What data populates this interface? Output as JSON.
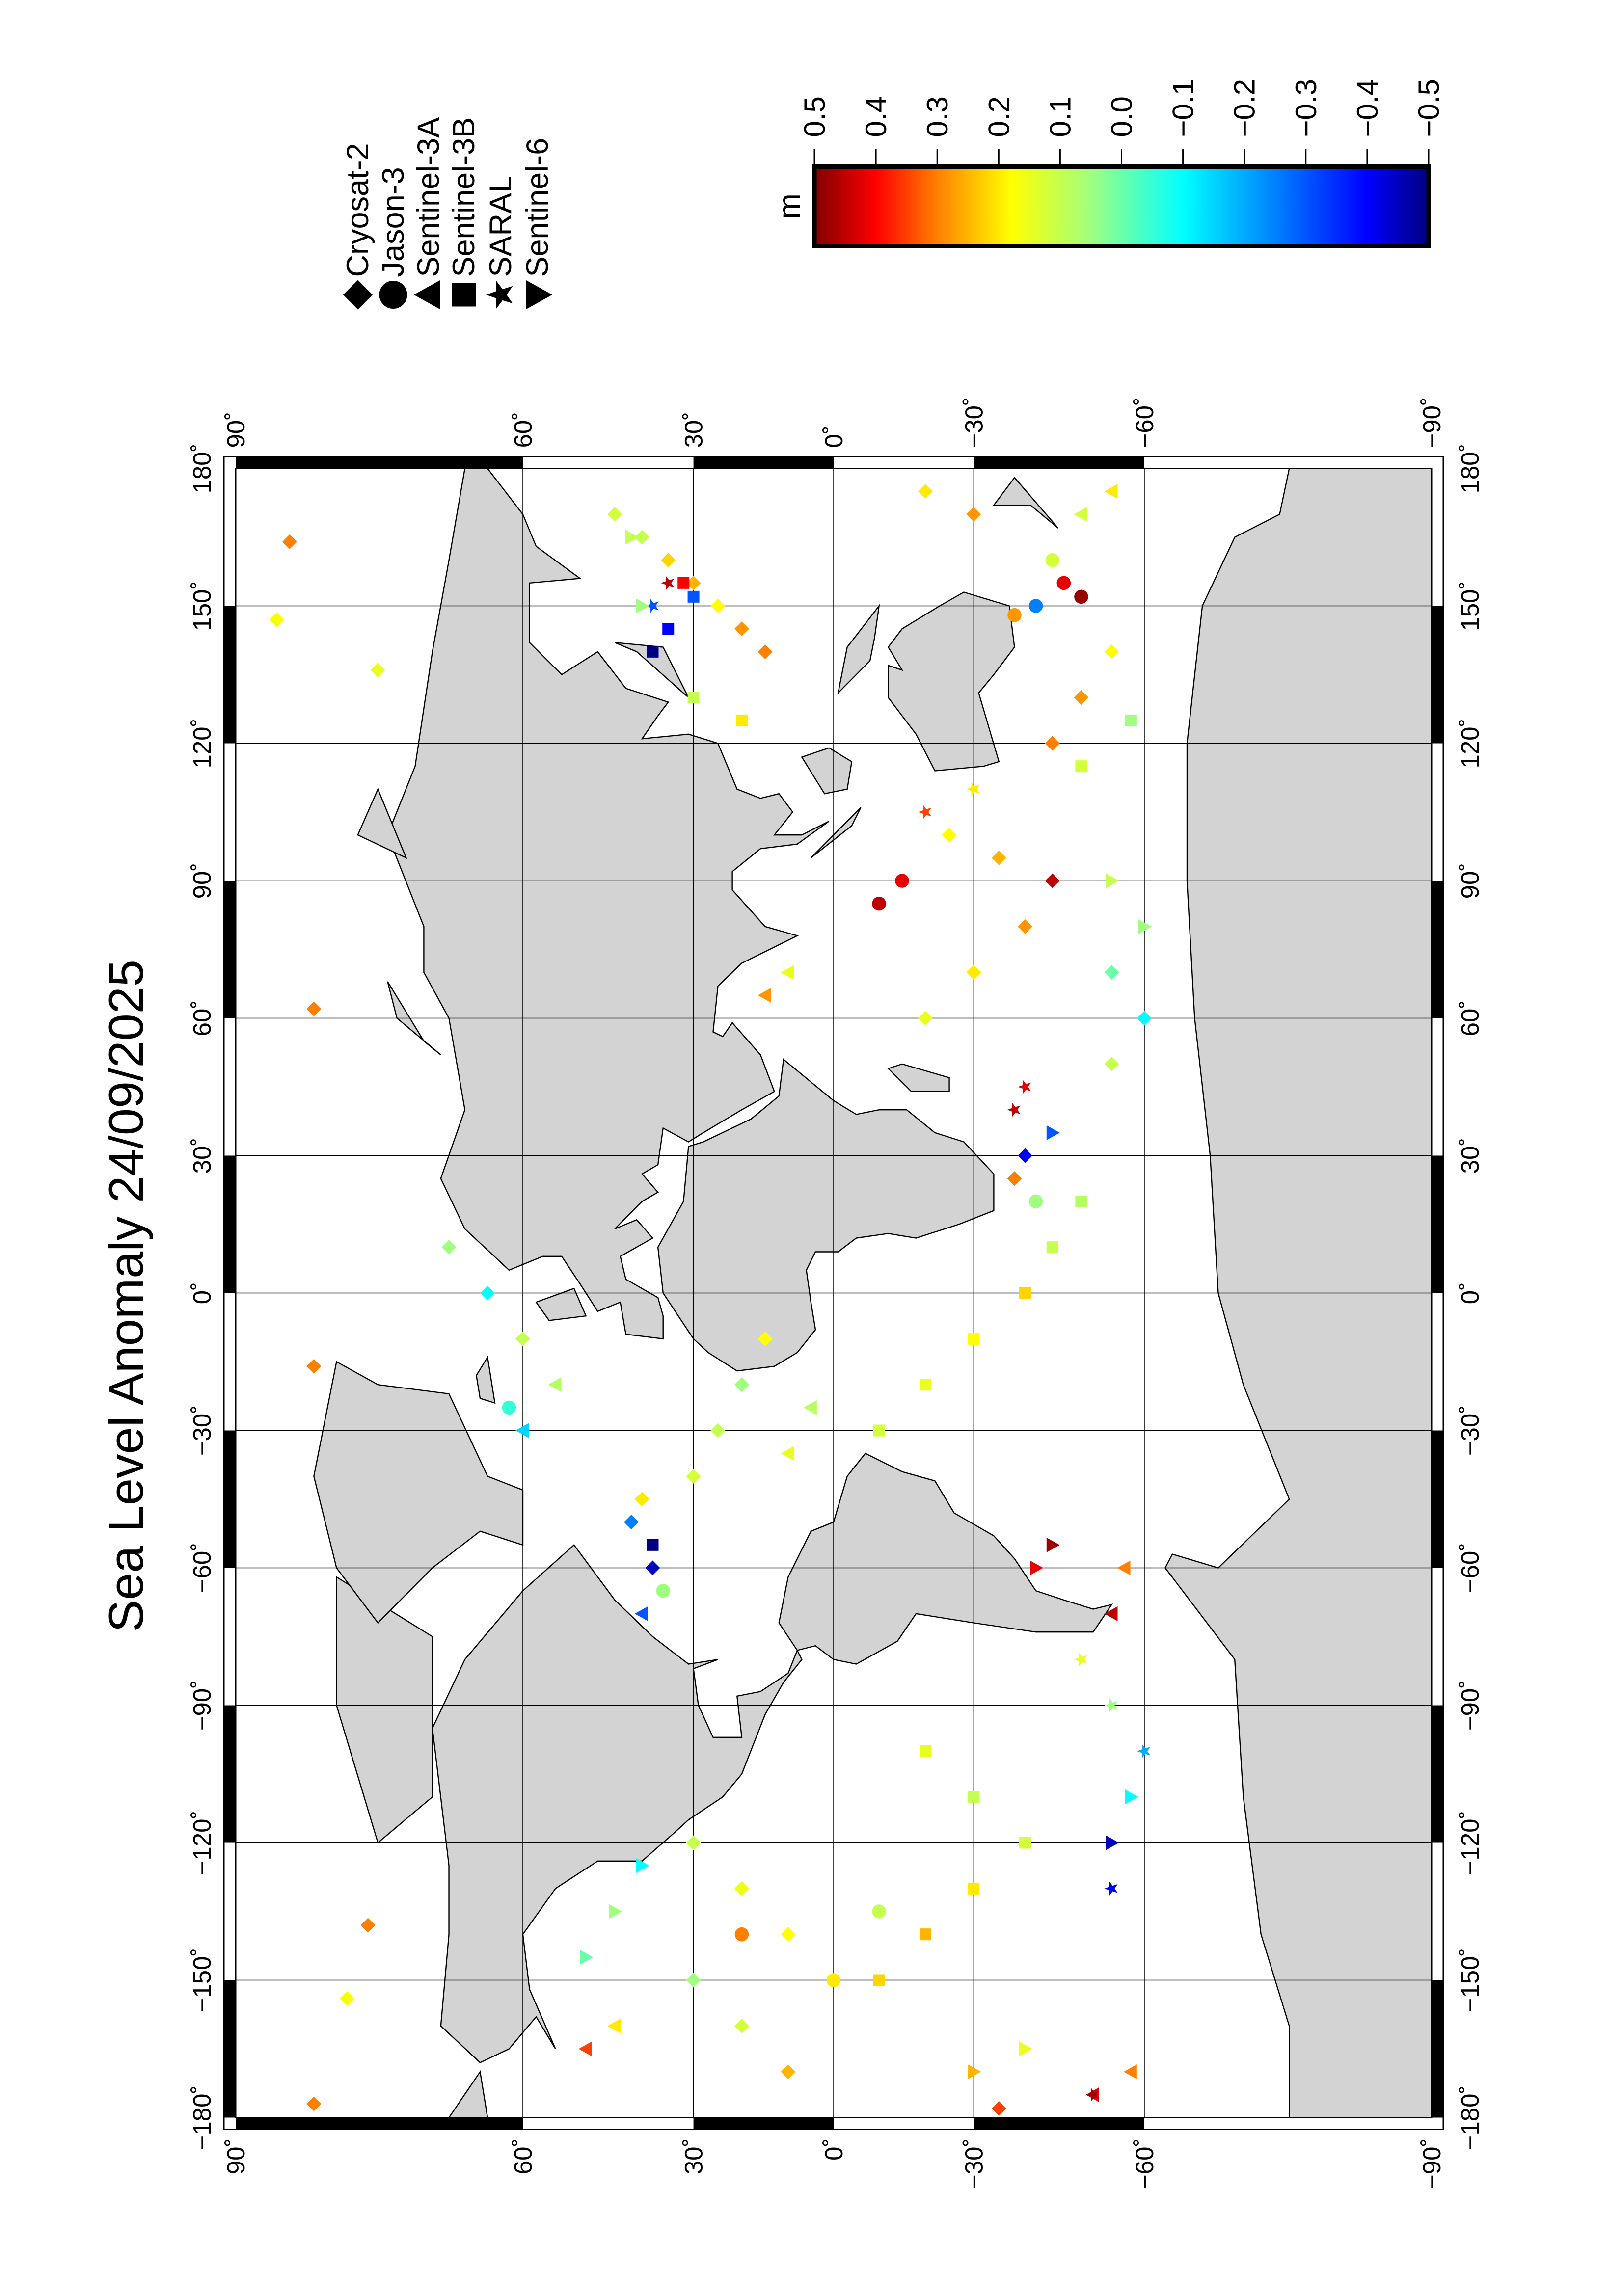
{
  "chart_data": {
    "type": "scatter",
    "title": "Sea Level Anomaly 24/09/2025",
    "projection": "Miller cylindrical",
    "xlim": [
      -180,
      180
    ],
    "ylim": [
      -90,
      90
    ],
    "grid": true,
    "lon_ticks": [
      -180,
      -150,
      -120,
      -90,
      -60,
      -30,
      0,
      30,
      60,
      90,
      120,
      150,
      180
    ],
    "lon_tick_labels": [
      "−180˚",
      "−150˚",
      "−120˚",
      "−90˚",
      "−60˚",
      "−30˚",
      "0˚",
      "30˚",
      "60˚",
      "90˚",
      "120˚",
      "150˚",
      "180˚"
    ],
    "lat_ticks": [
      90,
      60,
      30,
      0,
      -30,
      -60,
      -90
    ],
    "lat_tick_labels": [
      "90˚",
      "60˚",
      "30˚",
      "0˚",
      "−30˚",
      "−60˚",
      "−90˚"
    ],
    "land_color": "#d3d3d3",
    "legend": {
      "placement": "top-right",
      "entries": [
        {
          "name": "Cryosat-2",
          "symbol": "diamond"
        },
        {
          "name": "Jason-3",
          "symbol": "circle"
        },
        {
          "name": "Sentinel-3A",
          "symbol": "triangle"
        },
        {
          "name": "Sentinel-3B",
          "symbol": "square"
        },
        {
          "name": "SARAL",
          "symbol": "star"
        },
        {
          "name": "Sentinel-6",
          "symbol": "inverted-triangle"
        }
      ]
    },
    "colorbar": {
      "unit": "m",
      "range": [
        -0.5,
        0.5
      ],
      "ticks": [
        0.5,
        0.4,
        0.3,
        0.2,
        0.1,
        0.0,
        -0.1,
        -0.2,
        -0.3,
        -0.4,
        -0.5
      ],
      "tick_labels": [
        "0.5",
        "0.4",
        "0.3",
        "0.2",
        "0.1",
        "0.0",
        "−0.1",
        "−0.2",
        "−0.3",
        "−0.4",
        "−0.5"
      ],
      "stops": [
        [
          0.5,
          "#800000"
        ],
        [
          0.4,
          "#ff0000"
        ],
        [
          0.3,
          "#ff8000"
        ],
        [
          0.18,
          "#ffff00"
        ],
        [
          0.05,
          "#a0ff80"
        ],
        [
          -0.1,
          "#00ffff"
        ],
        [
          -0.25,
          "#0080ff"
        ],
        [
          -0.4,
          "#0000ff"
        ],
        [
          -0.5,
          "#000080"
        ]
      ]
    },
    "observation_fields": [
      "satellite_index",
      "lon",
      "lat",
      "sla_m"
    ],
    "observations": [
      [
        0,
        164,
        86,
        0.3
      ],
      [
        0,
        147,
        87,
        0.17
      ],
      [
        0,
        62,
        84,
        0.3
      ],
      [
        0,
        -16,
        84,
        0.3
      ],
      [
        0,
        -138,
        79,
        0.3
      ],
      [
        0,
        -154,
        81,
        0.17
      ],
      [
        0,
        -177,
        84,
        0.3
      ],
      [
        0,
        136,
        78,
        0.15
      ],
      [
        0,
        170,
        45,
        0.12
      ],
      [
        0,
        165,
        40,
        0.1
      ],
      [
        0,
        160,
        35,
        0.22
      ],
      [
        0,
        155,
        30,
        0.25
      ],
      [
        0,
        150,
        25,
        0.18
      ],
      [
        0,
        145,
        20,
        0.28
      ],
      [
        0,
        140,
        15,
        0.3
      ],
      [
        1,
        160,
        -45,
        0.12
      ],
      [
        1,
        155,
        -47,
        0.42
      ],
      [
        1,
        152,
        -50,
        0.48
      ],
      [
        1,
        150,
        -42,
        -0.25
      ],
      [
        1,
        148,
        -38,
        0.28
      ],
      [
        2,
        175,
        -55,
        0.2
      ],
      [
        2,
        170,
        -50,
        0.12
      ],
      [
        2,
        -175,
        -52,
        0.42
      ],
      [
        2,
        -170,
        -58,
        0.3
      ],
      [
        2,
        -165,
        50,
        0.35
      ],
      [
        2,
        -160,
        45,
        0.2
      ],
      [
        3,
        152,
        30,
        -0.3
      ],
      [
        3,
        155,
        32,
        0.4
      ],
      [
        3,
        145,
        35,
        -0.4
      ],
      [
        3,
        140,
        38,
        -0.5
      ],
      [
        3,
        130,
        30,
        0.1
      ],
      [
        3,
        125,
        20,
        0.2
      ],
      [
        4,
        155,
        35,
        0.45
      ],
      [
        4,
        150,
        38,
        -0.3
      ],
      [
        4,
        -130,
        -55,
        -0.4
      ],
      [
        4,
        -175,
        -52,
        0.48
      ],
      [
        4,
        45,
        -40,
        0.42
      ],
      [
        4,
        40,
        -38,
        0.45
      ],
      [
        5,
        165,
        42,
        0.1
      ],
      [
        5,
        150,
        40,
        0.05
      ],
      [
        5,
        -120,
        -55,
        -0.45
      ],
      [
        5,
        -110,
        -58,
        -0.1
      ],
      [
        5,
        -60,
        -42,
        0.42
      ],
      [
        5,
        -55,
        -45,
        0.48
      ],
      [
        0,
        -50,
        42,
        -0.25
      ],
      [
        0,
        -45,
        40,
        0.2
      ],
      [
        0,
        -60,
        38,
        -0.45
      ],
      [
        3,
        -55,
        38,
        -0.5
      ],
      [
        2,
        -70,
        40,
        -0.3
      ],
      [
        1,
        -65,
        36,
        0.05
      ],
      [
        0,
        -40,
        30,
        0.12
      ],
      [
        0,
        -30,
        25,
        0.1
      ],
      [
        0,
        -20,
        20,
        0.05
      ],
      [
        0,
        -10,
        15,
        0.18
      ],
      [
        2,
        -35,
        10,
        0.15
      ],
      [
        2,
        -25,
        5,
        0.08
      ],
      [
        3,
        -30,
        -10,
        0.12
      ],
      [
        3,
        -20,
        -20,
        0.15
      ],
      [
        3,
        -10,
        -30,
        0.18
      ],
      [
        3,
        0,
        -40,
        0.22
      ],
      [
        3,
        10,
        -45,
        0.1
      ],
      [
        3,
        20,
        -50,
        0.08
      ],
      [
        0,
        30,
        -40,
        -0.4
      ],
      [
        0,
        25,
        -38,
        0.3
      ],
      [
        5,
        35,
        -45,
        -0.3
      ],
      [
        1,
        20,
        -42,
        0.05
      ],
      [
        0,
        60,
        -20,
        0.15
      ],
      [
        0,
        70,
        -30,
        0.2
      ],
      [
        0,
        80,
        -40,
        0.28
      ],
      [
        0,
        90,
        -45,
        0.45
      ],
      [
        0,
        95,
        -35,
        0.25
      ],
      [
        0,
        100,
        -25,
        0.18
      ],
      [
        2,
        70,
        10,
        0.15
      ],
      [
        2,
        65,
        15,
        0.28
      ],
      [
        1,
        85,
        -10,
        0.45
      ],
      [
        1,
        90,
        -15,
        0.42
      ],
      [
        4,
        105,
        -20,
        0.35
      ],
      [
        4,
        110,
        -30,
        0.2
      ],
      [
        3,
        -100,
        -20,
        0.15
      ],
      [
        3,
        -110,
        -30,
        0.1
      ],
      [
        3,
        -120,
        -40,
        0.12
      ],
      [
        3,
        -130,
        -30,
        0.2
      ],
      [
        3,
        -140,
        -20,
        0.25
      ],
      [
        3,
        -150,
        -10,
        0.22
      ],
      [
        0,
        -140,
        10,
        0.18
      ],
      [
        0,
        -130,
        20,
        0.15
      ],
      [
        0,
        -120,
        30,
        0.1
      ],
      [
        0,
        -150,
        30,
        0.05
      ],
      [
        0,
        -160,
        20,
        0.12
      ],
      [
        0,
        -170,
        10,
        0.25
      ],
      [
        1,
        -140,
        20,
        0.3
      ],
      [
        1,
        -150,
        0,
        0.2
      ],
      [
        1,
        -135,
        -10,
        0.1
      ],
      [
        5,
        -125,
        40,
        -0.1
      ],
      [
        5,
        -135,
        45,
        0.05
      ],
      [
        5,
        -145,
        50,
        0.0
      ],
      [
        4,
        -100,
        -60,
        -0.2
      ],
      [
        4,
        -90,
        -55,
        0.05
      ],
      [
        4,
        -80,
        -50,
        0.15
      ],
      [
        2,
        -70,
        -55,
        0.45
      ],
      [
        2,
        -60,
        -57,
        0.3
      ],
      [
        0,
        -10,
        60,
        0.1
      ],
      [
        0,
        0,
        65,
        -0.1
      ],
      [
        0,
        10,
        70,
        0.05
      ],
      [
        2,
        -20,
        55,
        0.08
      ],
      [
        2,
        -30,
        60,
        -0.15
      ],
      [
        1,
        -25,
        62,
        -0.05
      ],
      [
        0,
        170,
        -30,
        0.28
      ],
      [
        0,
        175,
        -20,
        0.2
      ],
      [
        0,
        -178,
        -35,
        0.35
      ],
      [
        5,
        -170,
        -30,
        0.25
      ],
      [
        5,
        -165,
        -40,
        0.15
      ],
      [
        0,
        120,
        -45,
        0.3
      ],
      [
        0,
        130,
        -50,
        0.28
      ],
      [
        0,
        140,
        -55,
        0.18
      ],
      [
        3,
        115,
        -50,
        0.12
      ],
      [
        3,
        125,
        -58,
        0.05
      ],
      [
        0,
        50,
        -55,
        0.1
      ],
      [
        0,
        60,
        -60,
        -0.1
      ],
      [
        0,
        70,
        -55,
        0.0
      ],
      [
        5,
        80,
        -60,
        0.05
      ],
      [
        5,
        90,
        -55,
        0.1
      ]
    ]
  }
}
